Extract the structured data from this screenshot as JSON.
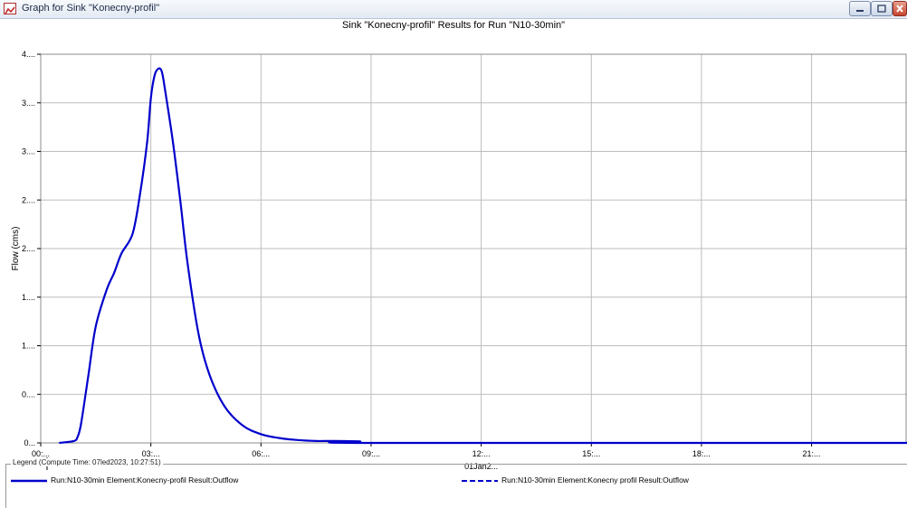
{
  "window": {
    "title": "Graph for Sink \"Konecny-profil\"",
    "controls": [
      "minimize-icon",
      "maximize-icon",
      "close-icon"
    ]
  },
  "colors": {
    "series": "#0000cc",
    "grid": "#bdbdbd",
    "frame": "#8c8c8c",
    "titlebar": "#e4eaf3"
  },
  "legend": {
    "title": "Legend (Compute Time: 07led2023, 10:27:51)",
    "items": [
      {
        "label": "Run:N10-30min Element:Konecny-profil Result:Outflow",
        "style": "solid"
      },
      {
        "label": "Run:N10-30min Element:Konecny profil Result:Outflow",
        "style": "dashed"
      }
    ]
  },
  "chart_data": {
    "type": "line",
    "title": "Sink \"Konecny-profil\" Results for Run \"N10-30min\"",
    "xlabel": "",
    "ylabel": "Flow (cms)",
    "x_tick_labels": [
      "00:...",
      "03:...",
      "06:...",
      "09:...",
      "12:...",
      "15:...",
      "18:...",
      "21:..."
    ],
    "x_date_label": "01Jan2...",
    "xlim_hours": [
      0,
      23.6
    ],
    "y_tick_labels": [
      "0...",
      "0....",
      "1....",
      "1....",
      "2....",
      "2....",
      "3....",
      "3....",
      "4...."
    ],
    "ylim": [
      0,
      4
    ],
    "grid": true,
    "series": [
      {
        "name": "Run:N10-30min Element:Konecny-profil Result:Outflow",
        "x_hours": [
          0.5,
          0.9,
          1.0,
          1.1,
          1.3,
          1.5,
          1.8,
          2.0,
          2.2,
          2.5,
          2.7,
          2.9,
          3.0,
          3.1,
          3.2,
          3.3,
          3.4,
          3.6,
          3.8,
          4.0,
          4.3,
          4.6,
          5.0,
          5.5,
          6.0,
          6.5,
          7.0,
          7.5,
          8.0,
          8.7,
          9.0,
          23.6
        ],
        "values": [
          0.0,
          0.02,
          0.06,
          0.2,
          0.7,
          1.2,
          1.58,
          1.75,
          1.95,
          2.15,
          2.55,
          3.1,
          3.55,
          3.78,
          3.85,
          3.82,
          3.6,
          3.1,
          2.5,
          1.85,
          1.12,
          0.7,
          0.38,
          0.18,
          0.09,
          0.05,
          0.03,
          0.02,
          0.02,
          0.015,
          0.0,
          0.0
        ]
      }
    ]
  }
}
